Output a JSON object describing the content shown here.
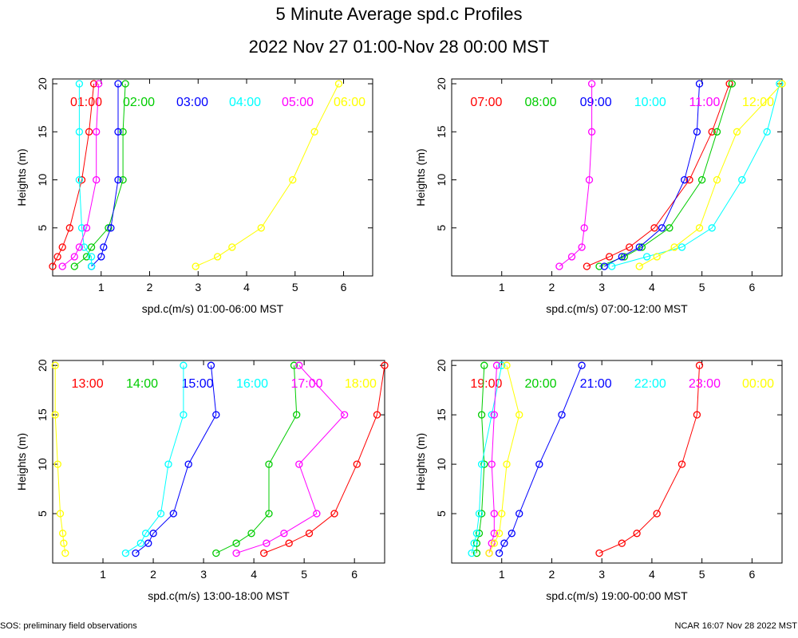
{
  "title": "5 Minute Average spd.c Profiles",
  "subtitle": "2022 Nov 27 01:00-Nov 28 00:00 MST",
  "footer_left": "SOS: preliminary field observations",
  "footer_right": "NCAR 16:07 Nov 28 2022 MST",
  "colors": [
    "#ff0000",
    "#00cc00",
    "#0000ff",
    "#00ffff",
    "#ff00ff",
    "#ffff00"
  ],
  "chart_data": [
    {
      "type": "line",
      "xlabel": "spd.c(m/s) 01:00-06:00 MST",
      "ylabel": "Heights (m)",
      "xlim": [
        0,
        6.6
      ],
      "ylim": [
        0,
        20.5
      ],
      "xticks": [
        1,
        2,
        3,
        4,
        5,
        6
      ],
      "yticks": [
        5,
        10,
        15,
        20
      ],
      "heights": [
        1,
        2,
        3,
        5,
        10,
        15,
        20
      ],
      "series": [
        {
          "name": "01:00",
          "values": [
            0.0,
            0.1,
            0.2,
            0.35,
            0.6,
            0.75,
            0.85
          ]
        },
        {
          "name": "02:00",
          "values": [
            0.45,
            0.7,
            0.8,
            1.15,
            1.45,
            1.45,
            1.5
          ]
        },
        {
          "name": "03:00",
          "values": [
            0.8,
            1.0,
            1.05,
            1.2,
            1.35,
            1.35,
            1.35
          ]
        },
        {
          "name": "04:00",
          "values": [
            0.8,
            0.8,
            0.65,
            0.6,
            0.55,
            0.55,
            0.55
          ]
        },
        {
          "name": "05:00",
          "values": [
            0.2,
            0.45,
            0.55,
            0.7,
            0.9,
            0.9,
            0.95
          ]
        },
        {
          "name": "06:00",
          "values": [
            2.95,
            3.4,
            3.7,
            4.3,
            4.95,
            5.4,
            5.9
          ]
        }
      ]
    },
    {
      "type": "line",
      "xlabel": "spd.c(m/s) 07:00-12:00 MST",
      "ylabel": "Heights (m)",
      "xlim": [
        0,
        6.6
      ],
      "ylim": [
        0,
        20.5
      ],
      "xticks": [
        1,
        2,
        3,
        4,
        5,
        6
      ],
      "yticks": [
        5,
        10,
        15,
        20
      ],
      "heights": [
        1,
        2,
        3,
        5,
        10,
        15,
        20
      ],
      "series": [
        {
          "name": "07:00",
          "values": [
            2.7,
            3.15,
            3.55,
            4.05,
            4.75,
            5.2,
            5.55
          ]
        },
        {
          "name": "08:00",
          "values": [
            2.95,
            3.45,
            3.8,
            4.35,
            5.0,
            5.3,
            5.6
          ]
        },
        {
          "name": "09:00",
          "values": [
            3.05,
            3.4,
            3.75,
            4.2,
            4.65,
            4.9,
            4.95
          ]
        },
        {
          "name": "10:00",
          "values": [
            3.2,
            3.9,
            4.6,
            5.2,
            5.8,
            6.3,
            6.55
          ]
        },
        {
          "name": "11:00",
          "values": [
            2.15,
            2.4,
            2.6,
            2.65,
            2.75,
            2.8,
            2.8
          ]
        },
        {
          "name": "12:00",
          "values": [
            3.75,
            4.1,
            4.45,
            4.95,
            5.3,
            5.7,
            6.6
          ]
        }
      ]
    },
    {
      "type": "line",
      "xlabel": "spd.c(m/s) 13:00-18:00 MST",
      "ylabel": "Heights (m)",
      "xlim": [
        0,
        6.6
      ],
      "ylim": [
        0,
        20.5
      ],
      "xticks": [
        1,
        2,
        3,
        4,
        5,
        6
      ],
      "yticks": [
        5,
        10,
        15,
        20
      ],
      "heights": [
        1,
        2,
        3,
        5,
        10,
        15,
        20
      ],
      "series": [
        {
          "name": "13:00",
          "values": [
            4.2,
            4.7,
            5.1,
            5.6,
            6.05,
            6.45,
            6.6
          ]
        },
        {
          "name": "14:00",
          "values": [
            3.25,
            3.65,
            3.95,
            4.3,
            4.3,
            4.85,
            4.8
          ]
        },
        {
          "name": "15:00",
          "values": [
            1.65,
            1.9,
            2.0,
            2.4,
            2.7,
            3.25,
            3.15
          ]
        },
        {
          "name": "16:00",
          "values": [
            1.45,
            1.75,
            1.85,
            2.15,
            2.3,
            2.6,
            2.6
          ]
        },
        {
          "name": "17:00",
          "values": [
            3.65,
            4.25,
            4.6,
            5.25,
            4.9,
            5.8,
            4.9
          ]
        },
        {
          "name": "18:00",
          "values": [
            0.25,
            0.22,
            0.2,
            0.15,
            0.1,
            0.05,
            0.05
          ]
        }
      ]
    },
    {
      "type": "line",
      "xlabel": "spd.c(m/s) 19:00-00:00 MST",
      "ylabel": "Heights (m)",
      "xlim": [
        0,
        6.6
      ],
      "ylim": [
        0,
        20.5
      ],
      "xticks": [
        1,
        2,
        3,
        4,
        5,
        6
      ],
      "yticks": [
        5,
        10,
        15,
        20
      ],
      "heights": [
        1,
        2,
        3,
        5,
        10,
        15,
        20
      ],
      "series": [
        {
          "name": "19:00",
          "values": [
            2.95,
            3.4,
            3.7,
            4.1,
            4.6,
            4.9,
            4.95
          ]
        },
        {
          "name": "20:00",
          "values": [
            0.5,
            0.5,
            0.55,
            0.6,
            0.65,
            0.6,
            0.65
          ]
        },
        {
          "name": "21:00",
          "values": [
            0.95,
            1.05,
            1.2,
            1.35,
            1.75,
            2.2,
            2.6
          ]
        },
        {
          "name": "22:00",
          "values": [
            0.4,
            0.45,
            0.5,
            0.55,
            0.6,
            0.8,
            1.0
          ]
        },
        {
          "name": "23:00",
          "values": [
            0.75,
            0.8,
            0.85,
            0.85,
            0.8,
            0.85,
            0.9
          ]
        },
        {
          "name": "00:00",
          "values": [
            0.75,
            0.85,
            0.95,
            1.0,
            1.1,
            1.35,
            1.1
          ]
        }
      ]
    }
  ]
}
